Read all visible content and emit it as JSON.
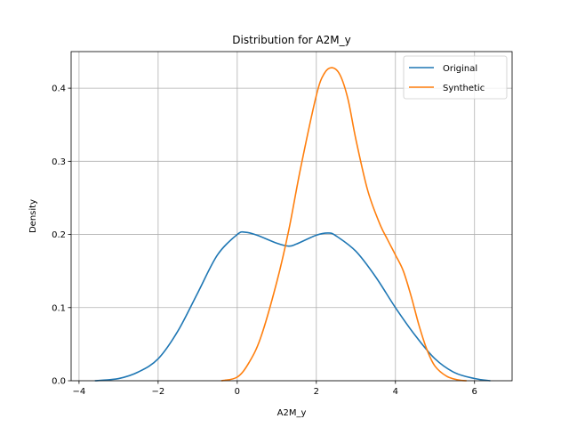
{
  "chart_data": {
    "type": "line",
    "title": "Distribution for A2M_y",
    "xlabel": "A2M_y",
    "ylabel": "Density",
    "xlim": [
      -4.2,
      6.95
    ],
    "ylim": [
      0.0,
      0.45
    ],
    "xticks": [
      -4,
      -2,
      0,
      2,
      4,
      6
    ],
    "yticks": [
      0.0,
      0.1,
      0.2,
      0.3,
      0.4
    ],
    "xtick_labels": [
      "−4",
      "−2",
      "0",
      "2",
      "4",
      "6"
    ],
    "ytick_labels": [
      "0.0",
      "0.1",
      "0.2",
      "0.3",
      "0.4"
    ],
    "grid": true,
    "legend_position": "top-right",
    "series": [
      {
        "name": "Original",
        "color": "#1f77b4",
        "x": [
          -3.6,
          -3.0,
          -2.5,
          -2.0,
          -1.5,
          -1.0,
          -0.5,
          0.0,
          0.2,
          0.5,
          1.0,
          1.3,
          1.5,
          2.0,
          2.3,
          2.5,
          3.0,
          3.5,
          4.0,
          4.5,
          5.0,
          5.5,
          6.0,
          6.4
        ],
        "y": [
          0.0,
          0.003,
          0.012,
          0.03,
          0.068,
          0.12,
          0.172,
          0.2,
          0.203,
          0.199,
          0.188,
          0.184,
          0.187,
          0.199,
          0.202,
          0.198,
          0.177,
          0.142,
          0.1,
          0.062,
          0.03,
          0.011,
          0.003,
          0.0
        ]
      },
      {
        "name": "Synthetic",
        "color": "#ff7f0e",
        "x": [
          -0.4,
          0.0,
          0.3,
          0.6,
          1.0,
          1.3,
          1.6,
          2.0,
          2.2,
          2.4,
          2.6,
          2.8,
          3.0,
          3.3,
          3.6,
          3.8,
          4.0,
          4.2,
          4.4,
          4.6,
          4.8,
          5.0,
          5.3,
          5.6,
          5.8
        ],
        "y": [
          0.0,
          0.005,
          0.025,
          0.06,
          0.135,
          0.205,
          0.29,
          0.39,
          0.42,
          0.428,
          0.418,
          0.385,
          0.33,
          0.26,
          0.215,
          0.193,
          0.172,
          0.15,
          0.115,
          0.075,
          0.042,
          0.02,
          0.006,
          0.001,
          0.0
        ]
      }
    ]
  }
}
